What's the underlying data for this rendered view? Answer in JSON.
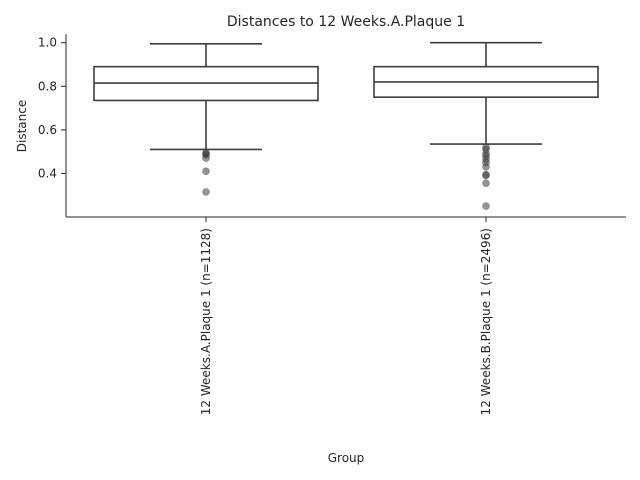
{
  "chart_data": {
    "type": "box",
    "title": "Distances to 12 Weeks.A.Plaque 1",
    "xlabel": "Group",
    "ylabel": "Distance",
    "ylim": [
      0.2,
      1.04
    ],
    "yticks": [
      0.4,
      0.6,
      0.8,
      1.0
    ],
    "ytick_labels": [
      "0.4",
      "0.6",
      "0.8",
      "1.0"
    ],
    "grid": false,
    "categories": [
      "12 Weeks.A.Plaque 1 (n=1128)",
      "12 Weeks.B.Plaque 1 (n=2496)"
    ],
    "boxes": [
      {
        "whisker_low": 0.51,
        "q1": 0.735,
        "median": 0.815,
        "q3": 0.89,
        "whisker_high": 0.995,
        "outliers": [
          0.495,
          0.49,
          0.485,
          0.47,
          0.41,
          0.315
        ]
      },
      {
        "whisker_low": 0.535,
        "q1": 0.75,
        "median": 0.82,
        "q3": 0.89,
        "whisker_high": 1.0,
        "outliers": [
          0.52,
          0.51,
          0.49,
          0.48,
          0.465,
          0.45,
          0.43,
          0.395,
          0.39,
          0.355,
          0.25
        ]
      }
    ]
  }
}
